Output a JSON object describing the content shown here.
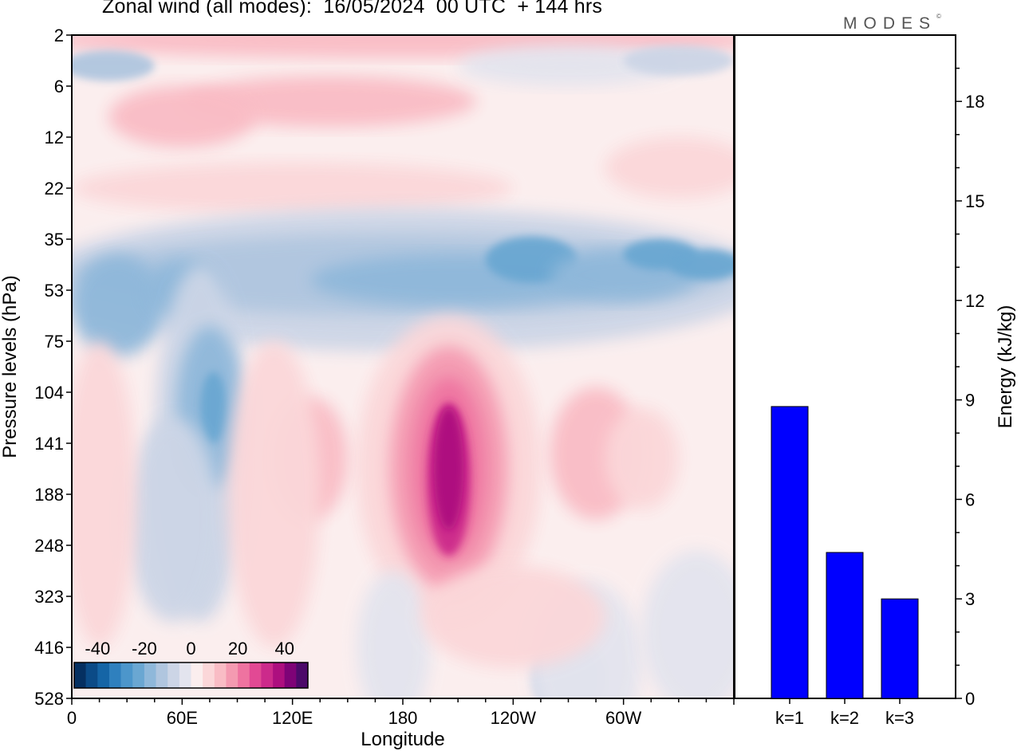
{
  "title": "Zonal wind (all modes):  16/05/2024  00 UTC  + 144 hrs",
  "logo": "MODES",
  "logo_mark": "©",
  "colors": {
    "bar_fill": "#0000ff",
    "panel_background": "#ffffff",
    "axis": "#000000"
  },
  "chart_data": [
    {
      "type": "heatmap",
      "title": "Zonal wind (all modes):  16/05/2024  00 UTC  + 144 hrs",
      "xlabel": "Longitude",
      "ylabel": "Pressure levels (hPa)",
      "x_ticks": [
        "0",
        "60E",
        "120E",
        "180",
        "120W",
        "60W"
      ],
      "y_ticks": [
        "2",
        "6",
        "12",
        "22",
        "35",
        "53",
        "75",
        "104",
        "141",
        "188",
        "248",
        "323",
        "416",
        "528"
      ],
      "colorbar": {
        "tick_labels": [
          "-40",
          "-20",
          "0",
          "20",
          "40"
        ],
        "levels": [
          -50,
          -45,
          -40,
          -35,
          -30,
          -25,
          -20,
          -15,
          -10,
          -5,
          0,
          5,
          10,
          15,
          20,
          25,
          30,
          35,
          40,
          45,
          50
        ],
        "colors": [
          "#053061",
          "#0b4b87",
          "#1565a6",
          "#2f80be",
          "#4c96cb",
          "#6aa7d2",
          "#8fb8da",
          "#b0c6df",
          "#ccd5e6",
          "#e3e4ee",
          "#fbeeee",
          "#fbd7d9",
          "#f9bcc5",
          "#f49ab1",
          "#ee73a0",
          "#e24994",
          "#cc2a8b",
          "#ad0f7f",
          "#7e0377",
          "#4b0a6a"
        ]
      },
      "features": [
        {
          "description": "strong westerly jet core",
          "lon": 205,
          "level": "141",
          "max_wind": 42
        },
        {
          "description": "easterly band",
          "lon_range": [
            0,
            360
          ],
          "level_range": [
            "35",
            "75"
          ],
          "min_wind": -25
        },
        {
          "description": "tilted easterly core",
          "lon": 75,
          "level": "104",
          "min_wind": -28
        }
      ]
    },
    {
      "type": "bar",
      "categories": [
        "k=1",
        "k=2",
        "k=3"
      ],
      "values": [
        8.8,
        4.4,
        3.0
      ],
      "ylabel": "Energy (kJ/kg)",
      "y_ticks": [
        "0",
        "3",
        "6",
        "9",
        "12",
        "15",
        "18"
      ],
      "ylim": [
        0,
        20
      ]
    }
  ]
}
